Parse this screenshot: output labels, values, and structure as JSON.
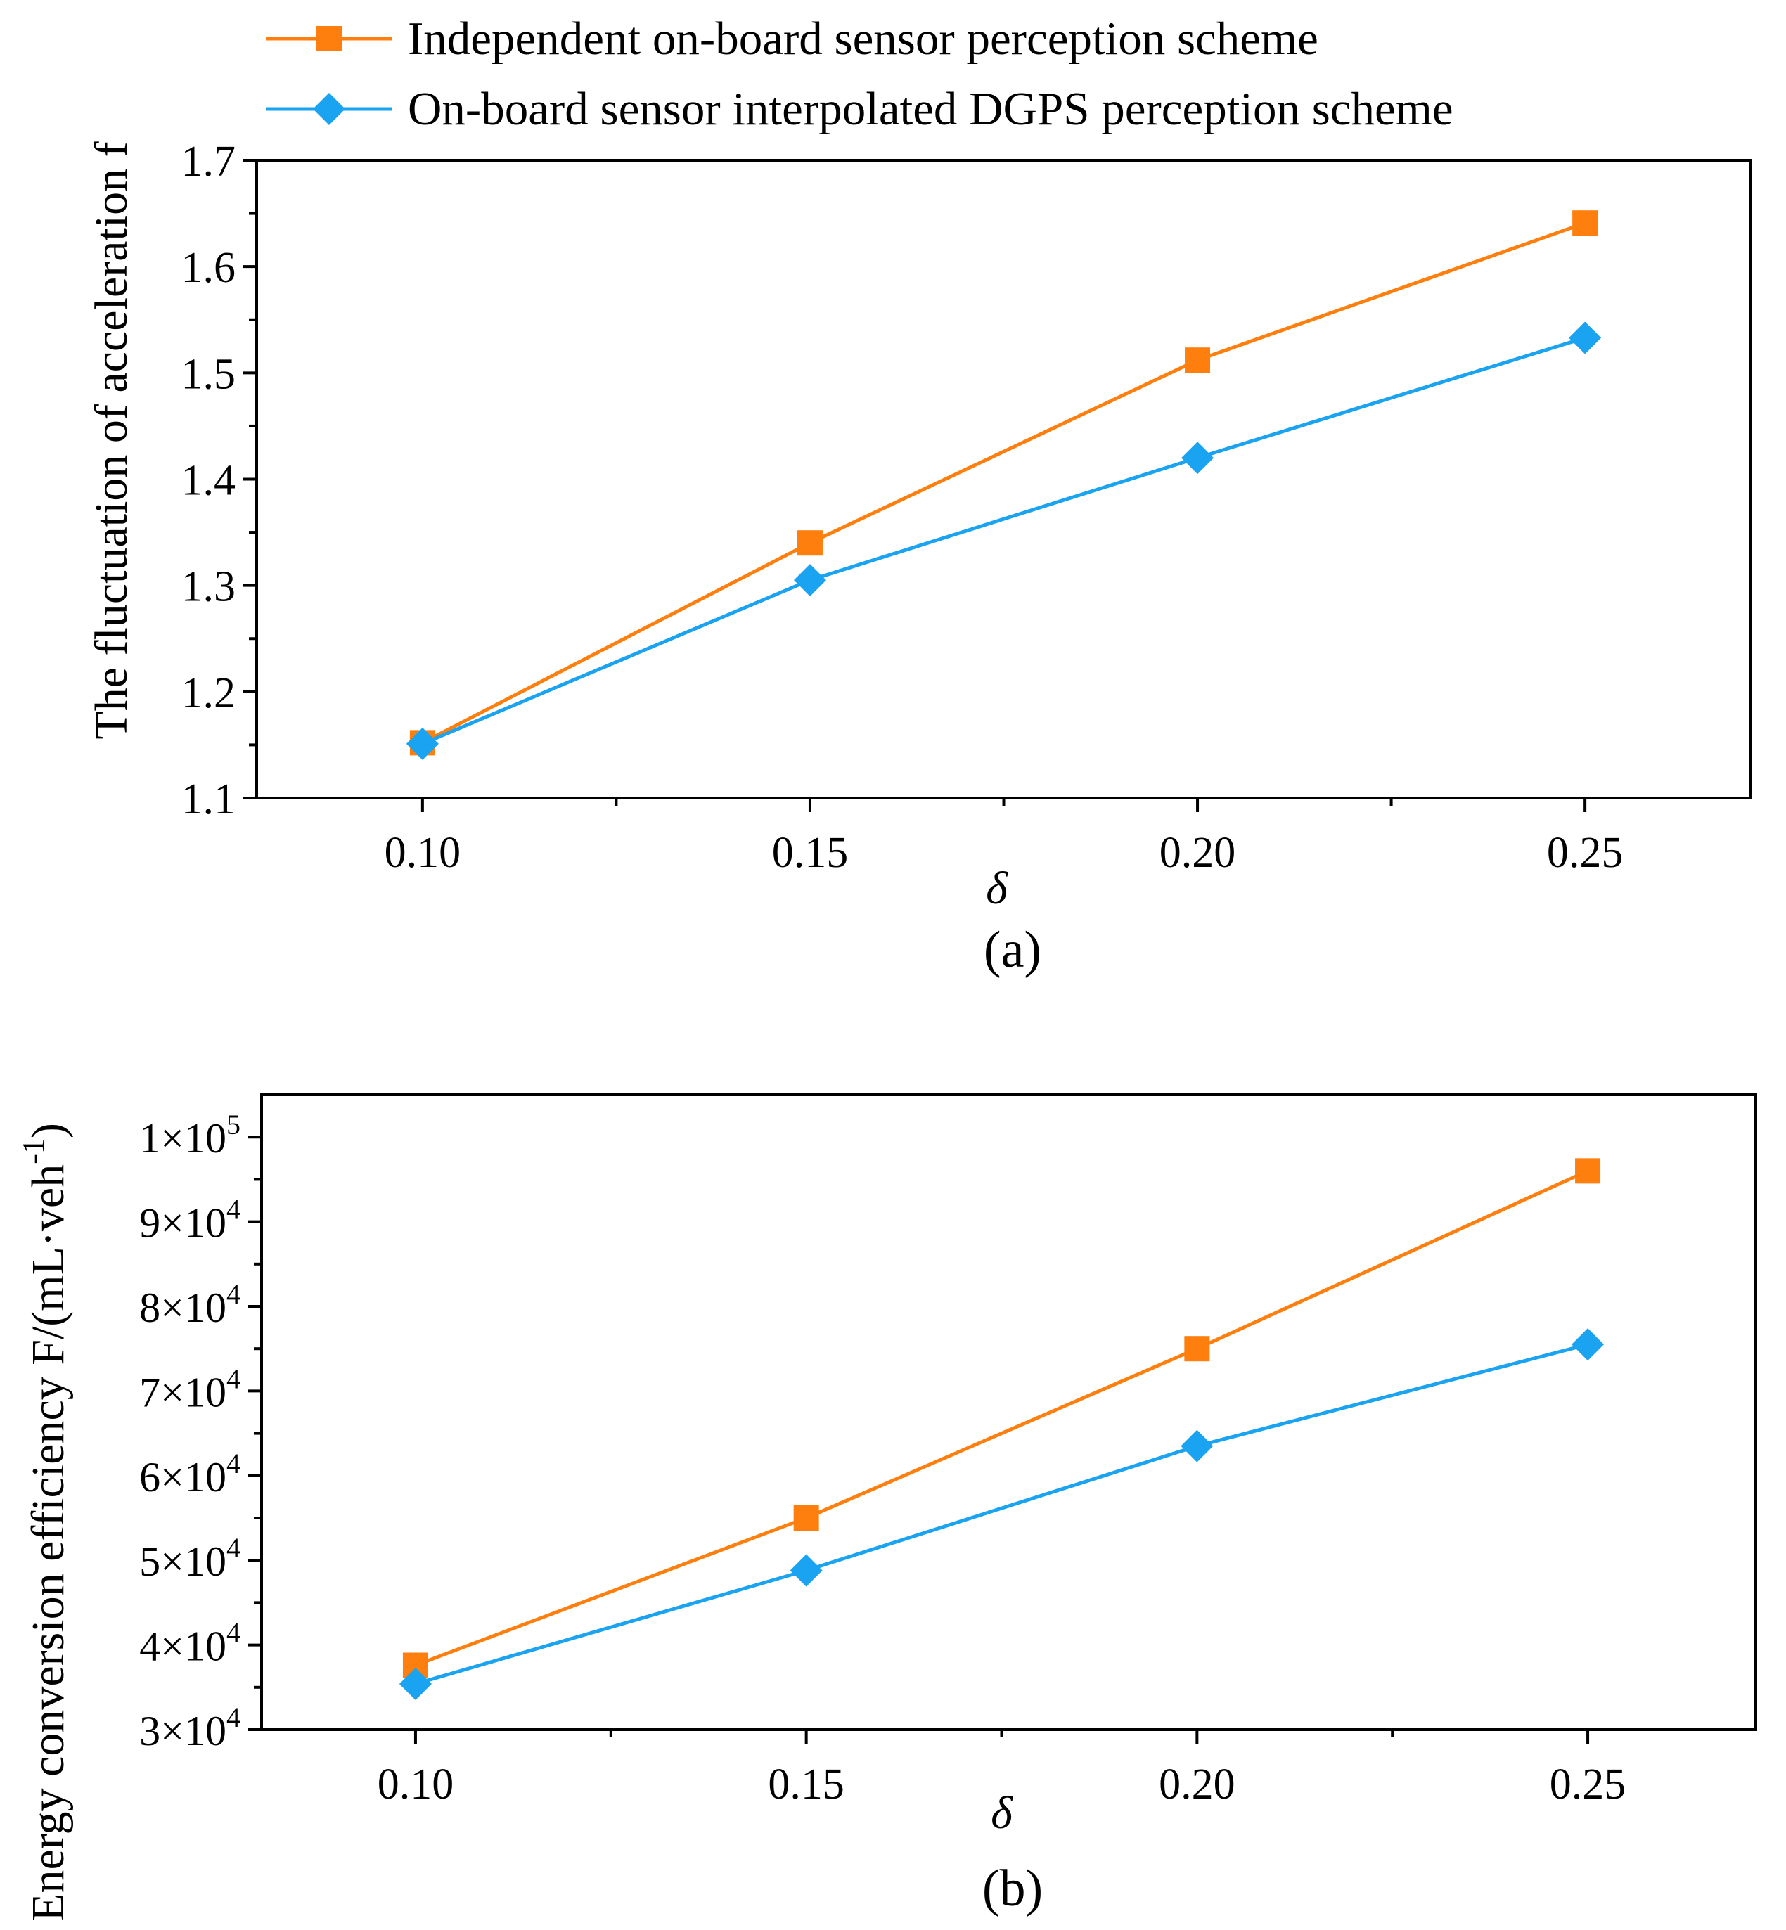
{
  "legend": {
    "items": [
      {
        "label": "Independent on-board sensor perception scheme",
        "color": "#ff7f0e",
        "marker": "square"
      },
      {
        "label": "On-board sensor interpolated DGPS perception scheme",
        "color": "#1aa3f0",
        "marker": "diamond"
      }
    ]
  },
  "chart_data": [
    {
      "type": "line",
      "panel_label": "(a)",
      "xlabel": "δ",
      "ylabel": "The fluctuation of acceleration f",
      "x": [
        0.1,
        0.15,
        0.2,
        0.25
      ],
      "xtick_labels": [
        "0.10",
        "0.15",
        "0.20",
        "0.25"
      ],
      "xlim": [
        0.0786,
        0.2714
      ],
      "ylim": [
        1.1,
        1.7
      ],
      "yticks": [
        1.1,
        1.2,
        1.3,
        1.4,
        1.5,
        1.6,
        1.7
      ],
      "ytick_labels": [
        "1.1",
        "1.2",
        "1.3",
        "1.4",
        "1.5",
        "1.6",
        "1.7"
      ],
      "series": [
        {
          "name": "Independent on-board sensor perception scheme",
          "color": "#ff7f0e",
          "marker": "square",
          "values": [
            1.152,
            1.34,
            1.512,
            1.641
          ]
        },
        {
          "name": "On-board sensor interpolated DGPS perception scheme",
          "color": "#1aa3f0",
          "marker": "diamond",
          "values": [
            1.151,
            1.305,
            1.42,
            1.533
          ]
        }
      ]
    },
    {
      "type": "line",
      "panel_label": "(b)",
      "xlabel": "δ",
      "ylabel": "Energy conversion efficiency F/(mL·veh",
      "ylabel_sup": "-1",
      "ylabel_close": ")",
      "x": [
        0.1,
        0.15,
        0.2,
        0.25
      ],
      "xtick_labels": [
        "0.10",
        "0.15",
        "0.20",
        "0.25"
      ],
      "xlim": [
        0.0803,
        0.2715
      ],
      "ylim": [
        30000,
        105000
      ],
      "yticks": [
        30000,
        40000,
        50000,
        60000,
        70000,
        80000,
        90000,
        100000
      ],
      "ytick_labels": [
        {
          "mant": "3×10",
          "exp": "4"
        },
        {
          "mant": "4×10",
          "exp": "4"
        },
        {
          "mant": "5×10",
          "exp": "4"
        },
        {
          "mant": "6×10",
          "exp": "4"
        },
        {
          "mant": "7×10",
          "exp": "4"
        },
        {
          "mant": "8×10",
          "exp": "4"
        },
        {
          "mant": "9×10",
          "exp": "4"
        },
        {
          "mant": "1×10",
          "exp": "5"
        }
      ],
      "series": [
        {
          "name": "Independent on-board sensor perception scheme",
          "color": "#ff7f0e",
          "marker": "square",
          "values": [
            37600,
            55000,
            75000,
            96000
          ]
        },
        {
          "name": "On-board sensor interpolated DGPS perception scheme",
          "color": "#1aa3f0",
          "marker": "diamond",
          "values": [
            35400,
            48800,
            63500,
            75500
          ]
        }
      ]
    }
  ]
}
